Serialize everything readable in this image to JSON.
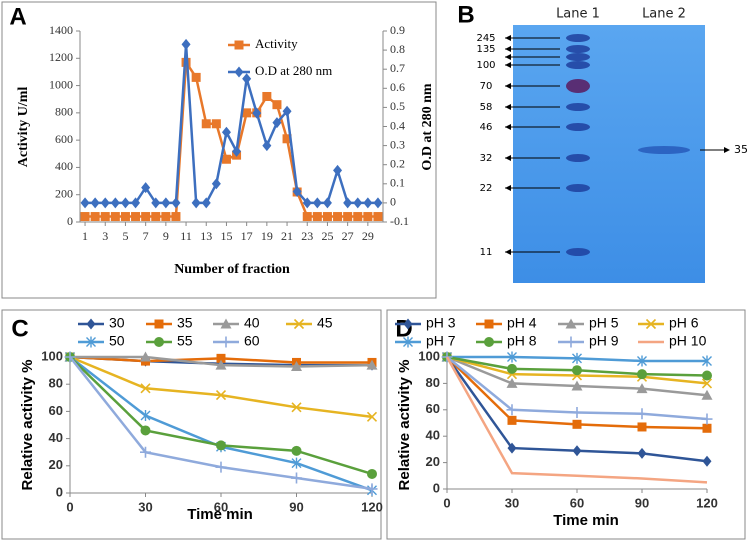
{
  "chart_data": [
    {
      "type": "line",
      "panel": "A",
      "xlabel": "Number of fraction",
      "ylabel": "Activity U/ml",
      "y2label": "O.D at 280 nm",
      "x": [
        1,
        2,
        3,
        4,
        5,
        6,
        7,
        8,
        9,
        10,
        11,
        12,
        13,
        14,
        15,
        16,
        17,
        18,
        19,
        20,
        21,
        22,
        23,
        24,
        25,
        26,
        27,
        28,
        29,
        30
      ],
      "xlim": [
        0.5,
        30.5
      ],
      "xticks": [
        1,
        3,
        5,
        7,
        9,
        11,
        13,
        15,
        17,
        19,
        21,
        23,
        25,
        27,
        29
      ],
      "ylim": [
        0,
        1400
      ],
      "yticks": [
        0,
        200,
        400,
        600,
        800,
        1000,
        1200,
        1400
      ],
      "y2lim": [
        -0.1,
        0.9
      ],
      "y2ticks": [
        -0.1,
        0,
        0.1,
        0.2,
        0.3,
        0.4,
        0.5,
        0.6,
        0.7,
        0.8,
        0.9
      ],
      "series": [
        {
          "name": "Activity",
          "color": "#e8782a",
          "marker": "square",
          "values": [
            40,
            40,
            40,
            40,
            40,
            40,
            40,
            40,
            40,
            40,
            1170,
            1060,
            720,
            720,
            460,
            490,
            800,
            800,
            920,
            860,
            610,
            220,
            40,
            40,
            40,
            40,
            40,
            40,
            40,
            40
          ]
        },
        {
          "name": "O.D at 280 nm",
          "color": "#3d6fbf",
          "marker": "diamond",
          "axis": "y2",
          "values": [
            0,
            0,
            0,
            0,
            0,
            0,
            0.08,
            0,
            0,
            0,
            0.83,
            0,
            0,
            0.1,
            0.37,
            0.27,
            0.65,
            0.47,
            0.3,
            0.42,
            0.48,
            0.06,
            0,
            0,
            0,
            0.17,
            0,
            0,
            0,
            0
          ]
        }
      ]
    },
    {
      "type": "line",
      "panel": "C",
      "xlabel": "Time min",
      "ylabel": "Relative activity %",
      "x": [
        0,
        30,
        60,
        90,
        120
      ],
      "xlim": [
        0,
        120
      ],
      "xticks": [
        0,
        30,
        60,
        90,
        120
      ],
      "ylim": [
        0,
        100
      ],
      "yticks": [
        0,
        20,
        40,
        60,
        80,
        100
      ],
      "series": [
        {
          "name": "30",
          "color": "#2f5597",
          "marker": "diamond",
          "values": [
            100,
            97,
            95,
            94,
            94
          ]
        },
        {
          "name": "35",
          "color": "#e46c0a",
          "marker": "square",
          "values": [
            100,
            97,
            99,
            96,
            96
          ]
        },
        {
          "name": "40",
          "color": "#9a9a9a",
          "marker": "triangle",
          "values": [
            100,
            100,
            94,
            93,
            94
          ]
        },
        {
          "name": "45",
          "color": "#e6b422",
          "marker": "x",
          "values": [
            100,
            77,
            72,
            63,
            56
          ]
        },
        {
          "name": "50",
          "color": "#4f9bd6",
          "marker": "asterisk",
          "values": [
            100,
            57,
            34,
            22,
            2
          ]
        },
        {
          "name": "55",
          "color": "#5aa03c",
          "marker": "circle",
          "values": [
            100,
            46,
            35,
            31,
            14
          ]
        },
        {
          "name": "60",
          "color": "#8faadc",
          "marker": "plus",
          "values": [
            100,
            30,
            19,
            11,
            3
          ]
        }
      ]
    },
    {
      "type": "line",
      "panel": "D",
      "xlabel": "Time min",
      "ylabel": "Relative activity %",
      "x": [
        0,
        30,
        60,
        90,
        120
      ],
      "xlim": [
        0,
        120
      ],
      "xticks": [
        0,
        30,
        60,
        90,
        120
      ],
      "ylim": [
        0,
        100
      ],
      "yticks": [
        0,
        20,
        40,
        60,
        80,
        100
      ],
      "series": [
        {
          "name": "pH 3",
          "color": "#2f5597",
          "marker": "diamond",
          "values": [
            100,
            31,
            29,
            27,
            21
          ]
        },
        {
          "name": "pH 4",
          "color": "#e46c0a",
          "marker": "square",
          "values": [
            100,
            52,
            49,
            47,
            46
          ]
        },
        {
          "name": "pH 5",
          "color": "#9a9a9a",
          "marker": "triangle",
          "values": [
            100,
            80,
            78,
            76,
            71
          ]
        },
        {
          "name": "pH 6",
          "color": "#e6b422",
          "marker": "x",
          "values": [
            100,
            87,
            86,
            85,
            80
          ]
        },
        {
          "name": "pH 7",
          "color": "#4f9bd6",
          "marker": "asterisk",
          "values": [
            100,
            100,
            99,
            97,
            97
          ]
        },
        {
          "name": "pH 8",
          "color": "#5aa03c",
          "marker": "circle",
          "values": [
            100,
            91,
            90,
            87,
            86
          ]
        },
        {
          "name": "pH 9",
          "color": "#8faadc",
          "marker": "plus",
          "values": [
            100,
            60,
            58,
            57,
            53
          ]
        },
        {
          "name": "pH 10",
          "color": "#f4a582",
          "marker": "none",
          "values": [
            100,
            12,
            10,
            8,
            5
          ]
        }
      ]
    }
  ],
  "gel": {
    "panel": "B",
    "lanes": [
      "Lane 1",
      "Lane 2"
    ],
    "markers": [
      "245",
      "135",
      "100",
      "70",
      "58",
      "46",
      "32",
      "22",
      "11"
    ],
    "band_label": "35"
  }
}
